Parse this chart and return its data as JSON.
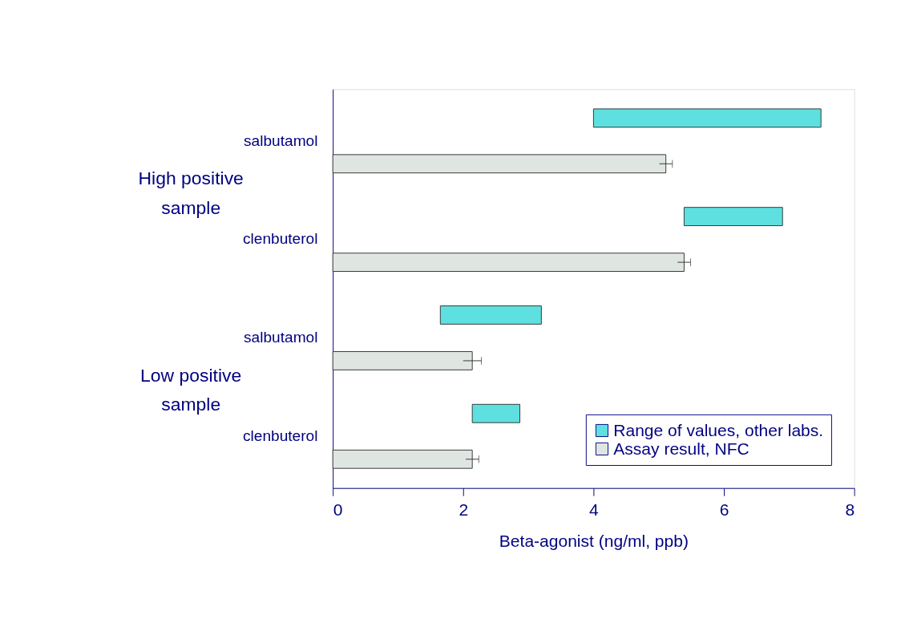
{
  "chart_data": {
    "type": "bar",
    "orientation": "horizontal",
    "xlabel": "Beta-agonist (ng/ml, ppb)",
    "categories": [
      "salbutamol",
      "clenbuterol",
      "salbutamol",
      "clenbuterol"
    ],
    "series": [
      {
        "name": "Range of values, other labs.",
        "color": "#5fe0e0",
        "base": [
          4.0,
          5.39,
          1.65,
          2.14
        ],
        "values": [
          3.49,
          1.51,
          1.55,
          0.73
        ]
      },
      {
        "name": "Assay result, NFC",
        "color": "#dfe6e2",
        "values": [
          5.11,
          5.39,
          2.14,
          2.14
        ],
        "errors": [
          0.1,
          0.1,
          0.14,
          0.1
        ]
      }
    ],
    "xlim": [
      0,
      8
    ],
    "xticks": [
      0,
      2,
      4,
      6,
      8
    ],
    "grid": false,
    "legend": "bottom right",
    "annotations": [
      "High positive sample",
      "Low positive sample"
    ]
  }
}
